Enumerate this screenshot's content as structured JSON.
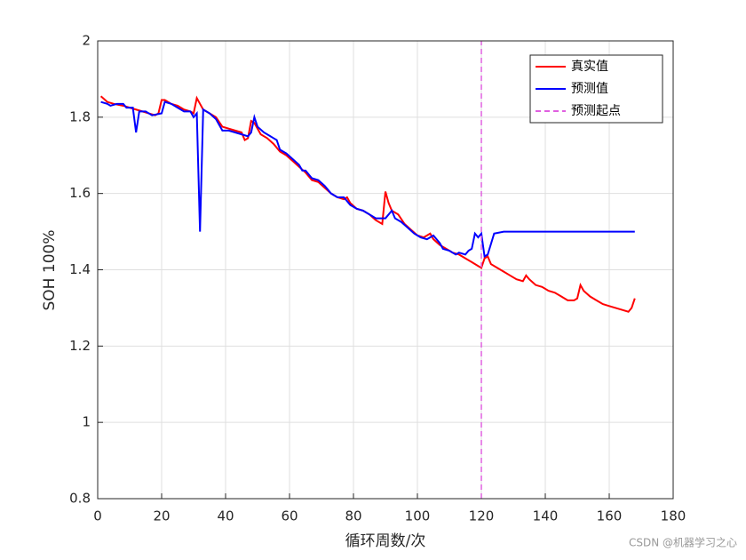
{
  "chart_data": {
    "type": "line",
    "xlabel": "循环周数/次",
    "ylabel": "SOH 100%",
    "xlim": [
      0,
      180
    ],
    "xticks": [
      0,
      20,
      40,
      60,
      80,
      100,
      120,
      140,
      160,
      180
    ],
    "ylim": [
      0.8,
      2
    ],
    "yticks": [
      0.8,
      1,
      1.2,
      1.4,
      1.6,
      1.8,
      2
    ],
    "grid": true,
    "legend": "upper right",
    "watermark": "CSDN @机器学习之心",
    "series": [
      {
        "name": "真实值",
        "color": "#ff0000",
        "style": "solid",
        "x": [
          1,
          3,
          5,
          8,
          10,
          12,
          14,
          16,
          18,
          19,
          20,
          21,
          23,
          25,
          27,
          29,
          30,
          31,
          32,
          33,
          35,
          37,
          39,
          41,
          43,
          45,
          46,
          47,
          48,
          49,
          50,
          51,
          53,
          55,
          57,
          59,
          61,
          63,
          65,
          67,
          69,
          71,
          73,
          75,
          77,
          78,
          79,
          81,
          83,
          85,
          87,
          89,
          90,
          91,
          92,
          94,
          96,
          98,
          100,
          102,
          104,
          105,
          107,
          109,
          111,
          113,
          115,
          117,
          119,
          120,
          121,
          122,
          123,
          125,
          127,
          129,
          131,
          133,
          134,
          135,
          137,
          139,
          141,
          143,
          145,
          147,
          149,
          150,
          151,
          152,
          154,
          156,
          158,
          160,
          162,
          164,
          166,
          167,
          168
        ],
        "values": [
          1.855,
          1.84,
          1.835,
          1.83,
          1.825,
          1.82,
          1.815,
          1.81,
          1.805,
          1.81,
          1.845,
          1.845,
          1.835,
          1.83,
          1.82,
          1.815,
          1.81,
          1.85,
          1.835,
          1.82,
          1.81,
          1.8,
          1.775,
          1.77,
          1.765,
          1.76,
          1.74,
          1.745,
          1.79,
          1.785,
          1.77,
          1.755,
          1.745,
          1.73,
          1.71,
          1.7,
          1.685,
          1.67,
          1.655,
          1.635,
          1.63,
          1.615,
          1.6,
          1.59,
          1.585,
          1.59,
          1.575,
          1.56,
          1.555,
          1.545,
          1.53,
          1.52,
          1.605,
          1.575,
          1.555,
          1.545,
          1.52,
          1.505,
          1.49,
          1.485,
          1.495,
          1.48,
          1.465,
          1.455,
          1.445,
          1.44,
          1.43,
          1.42,
          1.41,
          1.405,
          1.43,
          1.435,
          1.415,
          1.405,
          1.395,
          1.385,
          1.375,
          1.37,
          1.385,
          1.375,
          1.36,
          1.355,
          1.345,
          1.34,
          1.33,
          1.32,
          1.32,
          1.325,
          1.36,
          1.345,
          1.33,
          1.32,
          1.31,
          1.305,
          1.3,
          1.295,
          1.29,
          1.3,
          1.325
        ]
      },
      {
        "name": "预测值",
        "color": "#0000ff",
        "style": "solid",
        "x": [
          1,
          3,
          4,
          6,
          8,
          9,
          11,
          12,
          13,
          15,
          17,
          20,
          21,
          23,
          25,
          27,
          29,
          30,
          31,
          32,
          33,
          35,
          37,
          39,
          41,
          43,
          45,
          47,
          48,
          49,
          50,
          52,
          54,
          55,
          56,
          57,
          59,
          61,
          63,
          64,
          65,
          67,
          69,
          71,
          73,
          75,
          77,
          79,
          81,
          83,
          85,
          87,
          89,
          90,
          92,
          93,
          95,
          97,
          99,
          101,
          103,
          105,
          107,
          108,
          110,
          112,
          113,
          115,
          116,
          117,
          118,
          119,
          120,
          121,
          122,
          124,
          127,
          168
        ],
        "values": [
          1.84,
          1.835,
          1.83,
          1.835,
          1.835,
          1.825,
          1.825,
          1.76,
          1.815,
          1.815,
          1.805,
          1.81,
          1.84,
          1.835,
          1.825,
          1.815,
          1.815,
          1.8,
          1.81,
          1.5,
          1.82,
          1.81,
          1.795,
          1.765,
          1.765,
          1.76,
          1.755,
          1.75,
          1.76,
          1.8,
          1.775,
          1.76,
          1.75,
          1.745,
          1.74,
          1.715,
          1.705,
          1.69,
          1.675,
          1.66,
          1.66,
          1.64,
          1.635,
          1.62,
          1.6,
          1.59,
          1.59,
          1.57,
          1.56,
          1.555,
          1.545,
          1.535,
          1.535,
          1.535,
          1.555,
          1.535,
          1.525,
          1.51,
          1.495,
          1.485,
          1.48,
          1.49,
          1.47,
          1.455,
          1.45,
          1.44,
          1.445,
          1.44,
          1.45,
          1.455,
          1.495,
          1.485,
          1.495,
          1.435,
          1.44,
          1.495,
          1.5,
          1.5
        ]
      },
      {
        "name": "预测起点",
        "color": "#e060e0",
        "style": "dashed",
        "x": [
          120,
          120
        ],
        "values": [
          0.8,
          2
        ]
      }
    ]
  }
}
